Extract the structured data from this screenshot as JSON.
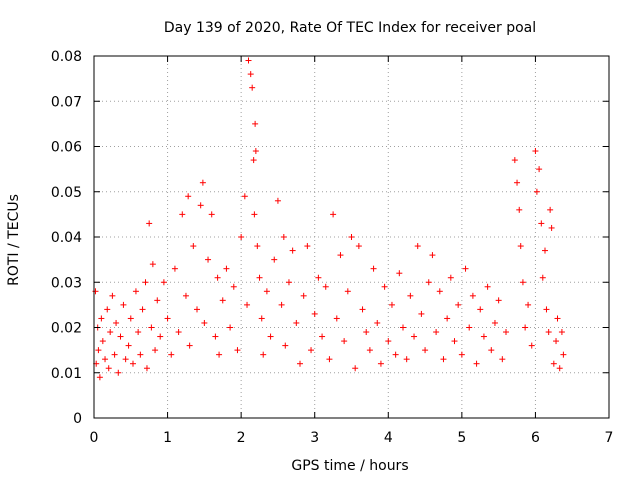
{
  "chart_data": {
    "type": "scatter",
    "title": "Day 139 of 2020, Rate Of TEC Index for receiver poal",
    "xlabel": "GPS time / hours",
    "ylabel": "ROTI / TECUs",
    "xlim": [
      0,
      7
    ],
    "ylim": [
      0,
      0.08
    ],
    "xticks": [
      0,
      1,
      2,
      3,
      4,
      5,
      6,
      7
    ],
    "xtick_labels": [
      "0",
      "1",
      "2",
      "3",
      "4",
      "5",
      "6",
      "7"
    ],
    "yticks": [
      0,
      0.01,
      0.02,
      0.03,
      0.04,
      0.05,
      0.06,
      0.07,
      0.08
    ],
    "ytick_labels": [
      "0",
      "0.01",
      "0.02",
      "0.03",
      "0.04",
      "0.05",
      "0.06",
      "0.07",
      "0.08"
    ],
    "grid": true,
    "marker": "+",
    "color": "#ff0000",
    "series": [
      {
        "x": [
          0.02,
          0.03,
          0.05,
          0.06,
          0.08,
          0.1,
          0.12,
          0.15,
          0.18,
          0.2,
          0.22,
          0.25,
          0.28,
          0.3,
          0.33,
          0.36,
          0.4,
          0.43,
          0.47,
          0.5,
          0.53,
          0.57,
          0.6,
          0.63,
          0.66,
          0.7,
          0.72,
          0.75,
          0.78,
          0.8,
          0.83,
          0.86,
          0.9,
          0.95,
          1.0,
          1.05,
          1.1,
          1.15,
          1.2,
          1.25,
          1.28,
          1.3,
          1.35,
          1.4,
          1.45,
          1.48,
          1.5,
          1.55,
          1.6,
          1.65,
          1.68,
          1.7,
          1.75,
          1.8,
          1.85,
          1.9,
          1.95,
          2.0,
          2.05,
          2.08,
          2.1,
          2.13,
          2.15,
          2.17,
          2.18,
          2.19,
          2.2,
          2.22,
          2.25,
          2.28,
          2.3,
          2.35,
          2.4,
          2.45,
          2.5,
          2.55,
          2.58,
          2.6,
          2.65,
          2.7,
          2.75,
          2.8,
          2.85,
          2.9,
          2.95,
          3.0,
          3.05,
          3.1,
          3.15,
          3.2,
          3.25,
          3.3,
          3.35,
          3.4,
          3.45,
          3.5,
          3.55,
          3.6,
          3.65,
          3.7,
          3.75,
          3.8,
          3.85,
          3.9,
          3.95,
          4.0,
          4.05,
          4.1,
          4.15,
          4.2,
          4.25,
          4.3,
          4.35,
          4.4,
          4.45,
          4.5,
          4.55,
          4.6,
          4.65,
          4.7,
          4.75,
          4.8,
          4.85,
          4.9,
          4.95,
          5.0,
          5.05,
          5.1,
          5.15,
          5.2,
          5.25,
          5.3,
          5.35,
          5.4,
          5.45,
          5.5,
          5.55,
          5.6,
          5.72,
          5.75,
          5.78,
          5.8,
          5.83,
          5.86,
          5.9,
          5.95,
          6.0,
          6.02,
          6.05,
          6.08,
          6.1,
          6.13,
          6.15,
          6.18,
          6.2,
          6.22,
          6.25,
          6.28,
          6.3,
          6.33,
          6.36,
          6.38
        ],
        "y": [
          0.028,
          0.012,
          0.02,
          0.015,
          0.009,
          0.022,
          0.017,
          0.013,
          0.024,
          0.011,
          0.019,
          0.027,
          0.014,
          0.021,
          0.01,
          0.018,
          0.025,
          0.013,
          0.016,
          0.022,
          0.012,
          0.028,
          0.019,
          0.014,
          0.024,
          0.03,
          0.011,
          0.043,
          0.02,
          0.034,
          0.015,
          0.026,
          0.018,
          0.03,
          0.022,
          0.014,
          0.033,
          0.019,
          0.045,
          0.027,
          0.049,
          0.016,
          0.038,
          0.024,
          0.047,
          0.052,
          0.021,
          0.035,
          0.045,
          0.018,
          0.031,
          0.014,
          0.026,
          0.033,
          0.02,
          0.029,
          0.015,
          0.04,
          0.049,
          0.025,
          0.079,
          0.076,
          0.073,
          0.057,
          0.045,
          0.065,
          0.059,
          0.038,
          0.031,
          0.022,
          0.014,
          0.028,
          0.018,
          0.035,
          0.048,
          0.025,
          0.04,
          0.016,
          0.03,
          0.037,
          0.021,
          0.012,
          0.027,
          0.038,
          0.015,
          0.023,
          0.031,
          0.018,
          0.029,
          0.013,
          0.045,
          0.022,
          0.036,
          0.017,
          0.028,
          0.04,
          0.011,
          0.038,
          0.024,
          0.019,
          0.015,
          0.033,
          0.021,
          0.012,
          0.029,
          0.017,
          0.025,
          0.014,
          0.032,
          0.02,
          0.013,
          0.027,
          0.018,
          0.038,
          0.023,
          0.015,
          0.03,
          0.036,
          0.019,
          0.028,
          0.013,
          0.022,
          0.031,
          0.017,
          0.025,
          0.014,
          0.033,
          0.02,
          0.027,
          0.012,
          0.024,
          0.018,
          0.029,
          0.015,
          0.021,
          0.026,
          0.013,
          0.019,
          0.057,
          0.052,
          0.046,
          0.038,
          0.03,
          0.02,
          0.025,
          0.016,
          0.059,
          0.05,
          0.055,
          0.043,
          0.031,
          0.037,
          0.024,
          0.019,
          0.046,
          0.042,
          0.012,
          0.017,
          0.022,
          0.011,
          0.019,
          0.014
        ]
      }
    ]
  }
}
